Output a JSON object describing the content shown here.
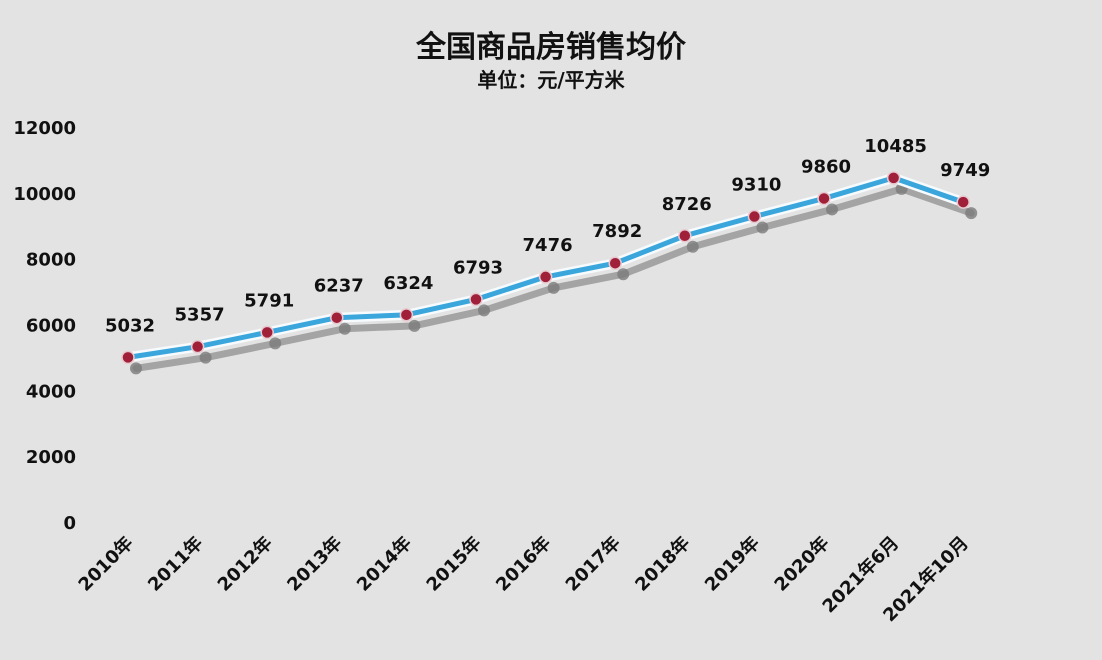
{
  "chart_data": {
    "type": "line",
    "title": "全国商品房销售均价",
    "subtitle": "单位：元/平方米",
    "categories": [
      "2010年",
      "2011年",
      "2012年",
      "2013年",
      "2014年",
      "2015年",
      "2016年",
      "2017年",
      "2018年",
      "2019年",
      "2020年",
      "2021年6月",
      "2021年10月"
    ],
    "series": [
      {
        "values": [
          5032,
          5357,
          5791,
          6237,
          6324,
          6793,
          7476,
          7892,
          8726,
          9310,
          9860,
          10485,
          9749
        ]
      }
    ],
    "ylim": [
      0,
      12000
    ],
    "yticks": [
      0,
      2000,
      4000,
      6000,
      8000,
      10000,
      12000
    ],
    "grid": false,
    "legend": "none",
    "colors": {
      "line": "#3aa6dc",
      "marker": "#a0203a",
      "shadow": "#8f8f8f",
      "background": "#e3e3e3"
    }
  }
}
